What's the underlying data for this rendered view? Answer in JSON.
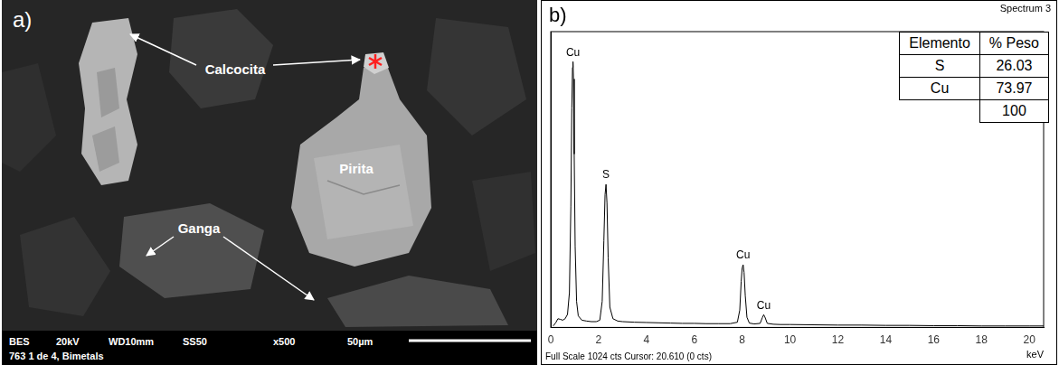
{
  "image_panel": {
    "letter": "a)",
    "labels": {
      "calcocita": "Calcocita",
      "pirita": "Pirita",
      "ganga": "Ganga"
    },
    "info_bar": {
      "line1": [
        "BES",
        "20kV",
        "WD10mm",
        "SS50",
        "x500",
        "50µm"
      ],
      "line2": "763  1 de 4, Bimetals"
    }
  },
  "chart_data": {
    "type": "line",
    "letter": "b)",
    "title": "Spectrum 3",
    "x_label": "keV",
    "footer": "Full Scale 1024 cts Cursor: 20.610 (0 cts)",
    "color": "#000000",
    "x": [
      0.1,
      0.2,
      0.3,
      0.4,
      0.5,
      0.6,
      0.7,
      0.78,
      0.84,
      0.88,
      0.91,
      0.93,
      0.95,
      0.98,
      1.02,
      1.08,
      1.15,
      1.3,
      1.5,
      1.7,
      1.9,
      2.05,
      2.15,
      2.22,
      2.27,
      2.31,
      2.35,
      2.4,
      2.47,
      2.6,
      2.8,
      3.0,
      3.5,
      4.0,
      4.5,
      5.0,
      5.5,
      6.0,
      6.5,
      7.0,
      7.5,
      7.8,
      7.9,
      7.96,
      8.0,
      8.04,
      8.08,
      8.13,
      8.2,
      8.3,
      8.5,
      8.75,
      8.85,
      8.9,
      8.95,
      9.05,
      9.3,
      9.6,
      10,
      11,
      12,
      13,
      14,
      15,
      16,
      17,
      18,
      19,
      20,
      20.6
    ],
    "values": [
      5,
      15,
      30,
      28,
      25,
      30,
      45,
      120,
      420,
      760,
      900,
      920,
      860,
      600,
      280,
      90,
      40,
      25,
      22,
      20,
      20,
      25,
      90,
      300,
      460,
      495,
      430,
      240,
      70,
      30,
      22,
      20,
      18,
      17,
      16,
      15,
      14,
      14,
      13,
      13,
      13,
      18,
      60,
      160,
      205,
      217,
      190,
      110,
      35,
      15,
      12,
      14,
      35,
      44,
      36,
      14,
      11,
      10,
      10,
      9,
      8,
      8,
      7,
      7,
      6,
      6,
      5,
      5,
      5,
      5
    ],
    "xlim": [
      0,
      20.6
    ],
    "xticks": [
      0,
      2,
      4,
      6,
      8,
      10,
      12,
      14,
      16,
      18,
      20
    ],
    "ylim": [
      0,
      1024
    ],
    "grid": false,
    "tick_labels": "x",
    "annotations": [
      {
        "text": "Cu",
        "x": 0.93,
        "y": 920
      },
      {
        "text": "S",
        "x": 2.31,
        "y": 495
      },
      {
        "text": "Cu",
        "x": 8.04,
        "y": 217
      },
      {
        "text": "Cu",
        "x": 8.9,
        "y": 44
      }
    ]
  },
  "table": {
    "header": [
      "Elemento",
      "% Peso"
    ],
    "rows": [
      [
        "S",
        26.03
      ],
      [
        "Cu",
        73.97
      ],
      [
        null,
        100
      ]
    ]
  }
}
